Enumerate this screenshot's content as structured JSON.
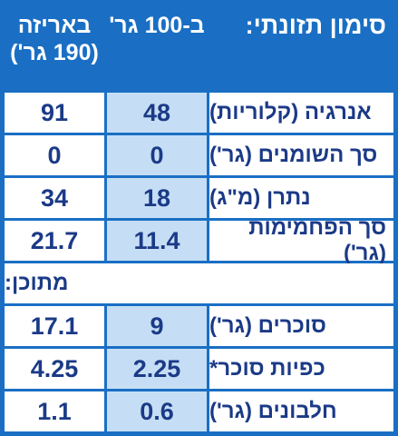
{
  "header": {
    "title": "סימון תזונתי:",
    "per_100": "ב-100 גר'",
    "package": "באריזה",
    "package_size": "(190 גר')"
  },
  "rows": [
    {
      "label": "אנרגיה (קלוריות)",
      "per_100": "48",
      "package": "91"
    },
    {
      "label": "סך השומנים (גר')",
      "per_100": "0",
      "package": "0"
    },
    {
      "label": "נתרן (מ\"ג)",
      "per_100": "18",
      "package": "34"
    },
    {
      "label": "סך הפחמימות (גר')",
      "per_100": "11.4",
      "package": "21.7"
    },
    {
      "label": "מתוכן:"
    },
    {
      "label": "סוכרים (גר')",
      "per_100": "9",
      "package": "17.1"
    },
    {
      "label": "כפיות סוכר*",
      "per_100": "2.25",
      "package": "4.25"
    },
    {
      "label": "חלבונים (גר')",
      "per_100": "0.6",
      "package": "1.1"
    }
  ]
}
